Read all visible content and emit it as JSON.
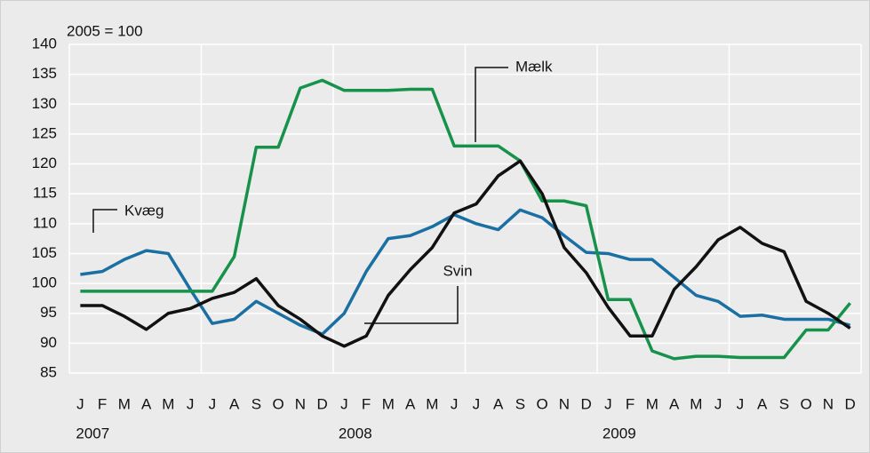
{
  "chart_data": {
    "type": "line",
    "y_label": "2005 = 100",
    "categories": [
      "J",
      "F",
      "M",
      "A",
      "M",
      "J",
      "J",
      "A",
      "S",
      "O",
      "N",
      "D",
      "J",
      "F",
      "M",
      "A",
      "M",
      "J",
      "J",
      "A",
      "S",
      "O",
      "N",
      "D",
      "J",
      "F",
      "M",
      "A",
      "M",
      "J",
      "J",
      "A",
      "S",
      "O",
      "N",
      "D"
    ],
    "year_labels": [
      "2007",
      "2008",
      "2009"
    ],
    "ylim": [
      85,
      140
    ],
    "yticks": [
      85,
      90,
      95,
      100,
      105,
      110,
      115,
      120,
      125,
      130,
      135,
      140
    ],
    "grid": true,
    "series": [
      {
        "name": "Kvæg",
        "color": "#1a6fa3",
        "values": [
          101.5,
          102,
          104,
          105.5,
          105,
          99,
          93.3,
          94,
          97,
          95,
          93,
          91.5,
          95,
          102,
          107.5,
          108,
          109.5,
          111.5,
          110,
          109,
          112.3,
          111,
          108,
          105.2,
          105,
          104,
          104,
          101,
          98,
          97,
          94.5,
          94.7,
          94,
          94,
          94,
          93
        ]
      },
      {
        "name": "Mælk",
        "color": "#16924b",
        "values": [
          98.7,
          98.7,
          98.7,
          98.7,
          98.7,
          98.7,
          98.7,
          104.5,
          122.8,
          122.8,
          132.7,
          134,
          132.3,
          132.3,
          132.3,
          132.5,
          132.5,
          123,
          123,
          123,
          120.5,
          113.8,
          113.8,
          113,
          97.3,
          97.3,
          88.7,
          87.4,
          87.8,
          87.8,
          87.6,
          87.6,
          87.6,
          92.2,
          92.2,
          96.7
        ]
      },
      {
        "name": "Svin",
        "color": "#111111",
        "values": [
          96.3,
          96.3,
          94.5,
          92.3,
          95,
          95.8,
          97.5,
          98.5,
          100.8,
          96.3,
          94,
          91.2,
          89.5,
          91.2,
          98,
          102.3,
          106,
          111.8,
          113.3,
          118,
          120.5,
          115,
          106,
          101.8,
          96,
          91.2,
          91.2,
          99,
          102.8,
          107.3,
          109.4,
          106.7,
          105.3,
          97,
          95,
          92.5
        ]
      }
    ]
  }
}
